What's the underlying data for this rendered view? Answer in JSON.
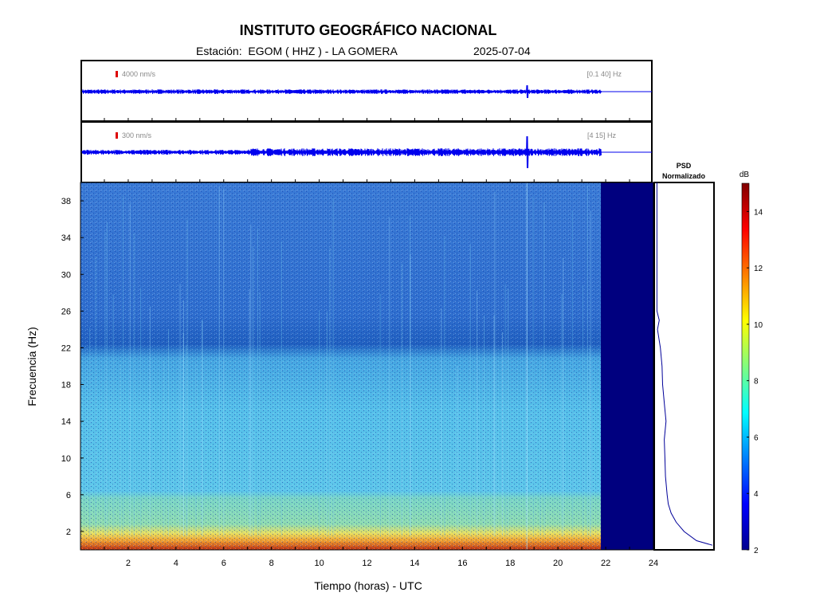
{
  "header": {
    "title": "INSTITUTO GEOGRÁFICO NACIONAL",
    "station": "Estación:  EGOM ( HHZ ) - LA GOMERA",
    "date": "2025-07-04"
  },
  "traces": [
    {
      "amplitude_label": "4000 nm/s",
      "band_label": "[0.1 40] Hz"
    },
    {
      "amplitude_label": "300 nm/s",
      "band_label": "[4 15] Hz"
    }
  ],
  "psd_label": {
    "line1": "PSD",
    "line2": "Normalizado"
  },
  "colorbar": {
    "unit": "dB",
    "ticks": [
      2,
      4,
      6,
      8,
      10,
      12,
      14
    ],
    "range": [
      2,
      15
    ]
  },
  "colors": {
    "trace": "#0000ee",
    "background_bar": "#00007f",
    "event_marker": "#dd0000"
  },
  "chart_data": {
    "type": "heatmap",
    "title": "INSTITUTO GEOGRÁFICO NACIONAL",
    "xlabel": "Tiempo (horas) - UTC",
    "ylabel": "Frecuencia  (Hz)",
    "xlim": [
      0,
      24
    ],
    "ylim": [
      0,
      40
    ],
    "x_ticks": [
      2,
      4,
      6,
      8,
      10,
      12,
      14,
      16,
      18,
      20,
      22,
      24
    ],
    "y_ticks": [
      2,
      6,
      10,
      14,
      18,
      22,
      26,
      30,
      34,
      38
    ],
    "data_end_hour": 21.8,
    "colorscale": "jet",
    "spectrogram_levels_db": [
      {
        "freq_range": [
          0,
          1
        ],
        "db": 11
      },
      {
        "freq_range": [
          1,
          2
        ],
        "db": 9
      },
      {
        "freq_range": [
          2,
          6
        ],
        "db": 7
      },
      {
        "freq_range": [
          6,
          22
        ],
        "db": 6
      },
      {
        "freq_range": [
          22,
          40
        ],
        "db": 4.5
      }
    ],
    "psd_normalized": {
      "freq": [
        0.5,
        1,
        2,
        3,
        4,
        5,
        6,
        8,
        10,
        12,
        14,
        16,
        18,
        20,
        22,
        24,
        25,
        26,
        28,
        30,
        32,
        34,
        36,
        38,
        40
      ],
      "value": [
        1.0,
        0.72,
        0.5,
        0.36,
        0.27,
        0.22,
        0.2,
        0.17,
        0.16,
        0.15,
        0.18,
        0.15,
        0.12,
        0.11,
        0.08,
        0.03,
        0.06,
        0.02,
        0.02,
        0.02,
        0.02,
        0.02,
        0.02,
        0.02,
        0.02
      ]
    },
    "seismic_events_hours": [
      18.7
    ]
  }
}
